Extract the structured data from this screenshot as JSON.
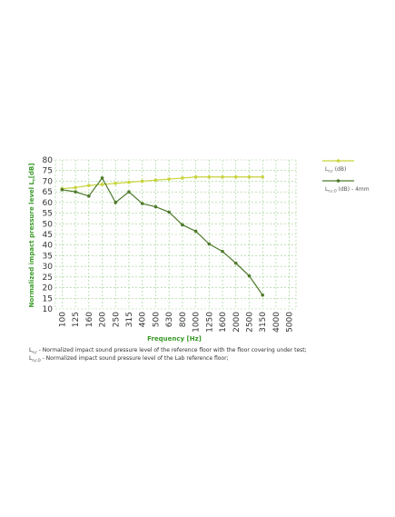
{
  "chart_data": {
    "type": "line",
    "xlabel": "Frequency [Hz]",
    "ylabel": "Normalized impact pressure level L",
    "ylabel_sub": "n",
    "ylabel_unit": "[dB]",
    "categories": [
      "100",
      "125",
      "160",
      "200",
      "250",
      "315",
      "400",
      "500",
      "630",
      "800",
      "1000",
      "1250",
      "1600",
      "2000",
      "2500",
      "3150",
      "4000",
      "5000"
    ],
    "yticks": [
      10,
      15,
      20,
      25,
      30,
      35,
      40,
      45,
      50,
      55,
      60,
      65,
      70,
      75,
      80
    ],
    "ylim": [
      10,
      80
    ],
    "grid": true,
    "legend_position": "right",
    "series": [
      {
        "name": "L",
        "name_sub": "n,r",
        "name_suffix": " (dB)",
        "color": "#c8d43a",
        "values": [
          66.5,
          67,
          68,
          68.5,
          69,
          69.5,
          70,
          70.5,
          71,
          71.5,
          72,
          72,
          72,
          72,
          72,
          72,
          null,
          null
        ]
      },
      {
        "name": "L",
        "name_sub": "n,r,0",
        "name_suffix": " (dB) - 4mm",
        "color": "#4e7a2c",
        "values": [
          66,
          65,
          63,
          71.5,
          60,
          65,
          59.5,
          58,
          55.5,
          49.5,
          46.5,
          40.5,
          37,
          31.5,
          25.5,
          16.5,
          null,
          null
        ]
      }
    ]
  },
  "notes": [
    {
      "sym": "L",
      "sub": "n,r",
      "text": " - Normalized impact sound pressure level of the reference floor with the floor covering under test;"
    },
    {
      "sym": "L",
      "sub": "n,r,0",
      "text": " - Normalized impact sound pressure level of the Lab reference floor;"
    }
  ]
}
